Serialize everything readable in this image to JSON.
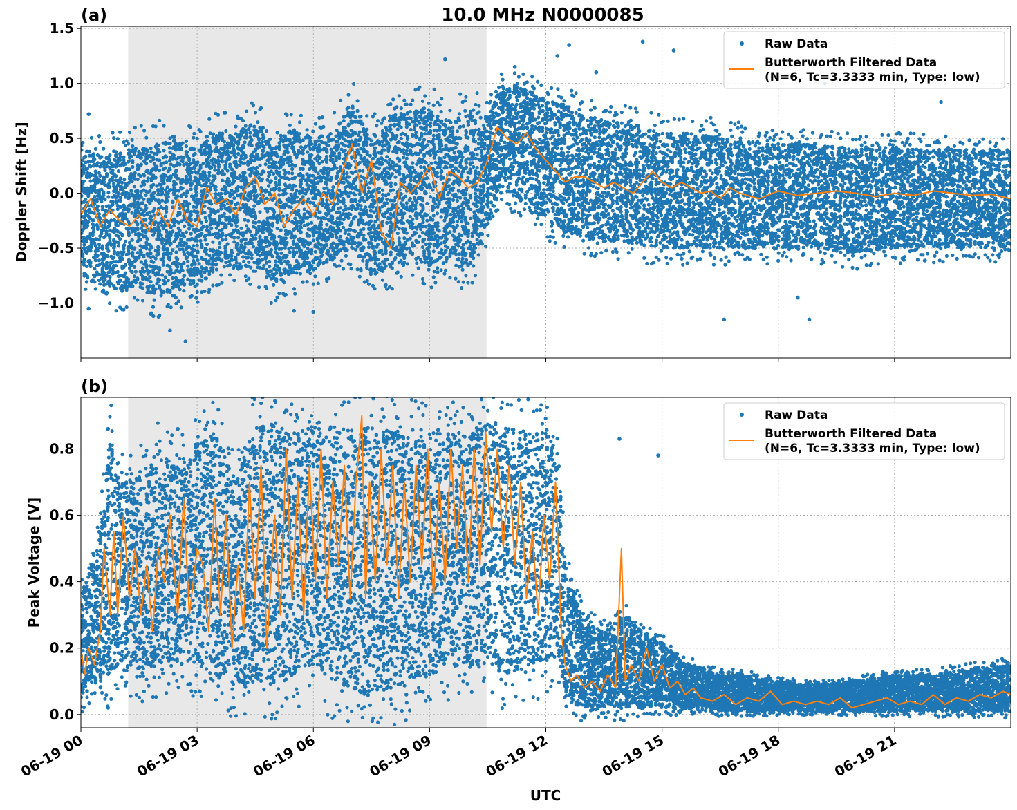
{
  "figure": {
    "title": "10.0 MHz N0000085",
    "xlabel": "UTC"
  },
  "legend": {
    "raw_label": "Raw Data",
    "filtered_label_line1": "Butterworth Filtered Data",
    "filtered_label_line2": "(N=6, Tc=3.3333 min, Type: low)"
  },
  "colors": {
    "raw": "#1f77b4",
    "filtered": "#ff7f0e",
    "shade": "#e8e8e8",
    "grid": "#b0b0b0"
  },
  "chart_data": [
    {
      "type": "scatter",
      "panel_label": "(a)",
      "title": "10.0 MHz N0000085",
      "xlabel": "",
      "ylabel": "Doppler Shift [Hz]",
      "x_unit": "hours UTC on 06-19",
      "xlim": [
        0,
        24
      ],
      "ylim": [
        -1.5,
        1.52
      ],
      "x_ticks": [
        0,
        3,
        6,
        9,
        12,
        15,
        18,
        21
      ],
      "x_tick_labels": [
        "06-19 00",
        "06-19 03",
        "06-19 06",
        "06-19 09",
        "06-19 12",
        "06-19 15",
        "06-19 18",
        "06-19 21"
      ],
      "y_ticks": [
        -1.0,
        -0.5,
        0.0,
        0.5,
        1.0,
        1.5
      ],
      "y_tick_labels": [
        "−1.0",
        "−0.5",
        "0.0",
        "0.5",
        "1.0",
        "1.5"
      ],
      "grid": true,
      "legend_position": "top-right",
      "shaded_region": [
        1.22,
        10.47
      ],
      "series": [
        {
          "name": "Raw Data",
          "style": "points",
          "envelope": {
            "x": [
              0,
              0.5,
              1,
              1.5,
              2,
              2.5,
              3,
              3.5,
              4,
              4.5,
              5,
              5.5,
              6,
              6.5,
              7,
              7.5,
              8,
              8.5,
              9,
              9.5,
              10,
              10.5,
              10.8,
              11,
              11.5,
              12,
              12.5,
              13,
              14,
              15,
              16,
              17,
              18,
              19,
              20,
              21,
              22,
              23,
              24
            ],
            "upper": [
              0.4,
              0.35,
              0.4,
              0.45,
              0.45,
              0.5,
              0.4,
              0.55,
              0.55,
              0.65,
              0.45,
              0.6,
              0.5,
              0.55,
              0.85,
              0.5,
              0.7,
              0.75,
              0.8,
              0.6,
              0.8,
              0.7,
              0.95,
              1.0,
              0.95,
              0.85,
              0.8,
              0.7,
              0.65,
              0.55,
              0.55,
              0.5,
              0.45,
              0.45,
              0.4,
              0.42,
              0.4,
              0.4,
              0.4
            ],
            "lower": [
              -0.75,
              -0.8,
              -0.9,
              -0.85,
              -0.95,
              -0.85,
              -0.85,
              -0.7,
              -0.7,
              -0.65,
              -0.85,
              -0.75,
              -0.7,
              -0.6,
              -0.5,
              -0.75,
              -0.7,
              -0.55,
              -0.65,
              -0.6,
              -0.7,
              -0.3,
              0.0,
              0.0,
              -0.1,
              -0.25,
              -0.35,
              -0.4,
              -0.45,
              -0.5,
              -0.5,
              -0.5,
              -0.5,
              -0.5,
              -0.55,
              -0.5,
              -0.5,
              -0.5,
              -0.5
            ]
          },
          "outliers": [
            [
              0.2,
              -1.05
            ],
            [
              0.2,
              0.72
            ],
            [
              2.3,
              -1.25
            ],
            [
              2.7,
              -1.35
            ],
            [
              5.5,
              -1.07
            ],
            [
              6.0,
              -1.08
            ],
            [
              9.4,
              1.22
            ],
            [
              11.2,
              1.15
            ],
            [
              12.3,
              1.25
            ],
            [
              12.6,
              1.35
            ],
            [
              13.3,
              1.1
            ],
            [
              14.5,
              1.38
            ],
            [
              15.3,
              1.3
            ],
            [
              16.6,
              -1.15
            ],
            [
              18.0,
              1.35
            ],
            [
              18.5,
              -0.95
            ],
            [
              18.8,
              -1.15
            ],
            [
              19.2,
              1.0
            ],
            [
              22.2,
              0.83
            ]
          ]
        },
        {
          "name": "Butterworth Filtered Data\n(N=6, Tc=3.3333 min, Type: low)",
          "style": "line",
          "x": [
            0,
            0.25,
            0.5,
            0.75,
            1,
            1.25,
            1.5,
            1.75,
            2,
            2.25,
            2.5,
            2.75,
            3,
            3.25,
            3.5,
            3.75,
            4,
            4.25,
            4.5,
            4.75,
            5,
            5.25,
            5.5,
            5.75,
            6,
            6.25,
            6.5,
            6.75,
            7,
            7.25,
            7.5,
            7.75,
            8,
            8.25,
            8.5,
            8.75,
            9,
            9.25,
            9.5,
            9.75,
            10,
            10.25,
            10.5,
            10.75,
            11,
            11.25,
            11.5,
            11.75,
            12,
            12.25,
            12.5,
            12.75,
            13,
            13.25,
            13.5,
            13.75,
            14,
            14.25,
            14.5,
            14.75,
            15,
            15.25,
            15.5,
            15.75,
            16,
            16.25,
            16.5,
            16.75,
            17,
            17.5,
            18,
            18.5,
            19,
            19.5,
            20,
            20.5,
            21,
            21.5,
            22,
            22.5,
            23,
            23.5,
            24
          ],
          "y": [
            -0.2,
            -0.05,
            -0.3,
            -0.15,
            -0.25,
            -0.3,
            -0.2,
            -0.35,
            -0.15,
            -0.3,
            -0.05,
            -0.25,
            -0.3,
            0.05,
            -0.1,
            -0.05,
            -0.2,
            0.05,
            0.15,
            -0.1,
            0.0,
            -0.3,
            -0.15,
            -0.05,
            -0.2,
            0.0,
            -0.1,
            0.2,
            0.45,
            0.0,
            0.3,
            -0.35,
            -0.5,
            0.1,
            0.0,
            0.1,
            0.25,
            -0.05,
            0.2,
            0.15,
            0.05,
            0.1,
            0.3,
            0.6,
            0.5,
            0.45,
            0.55,
            0.4,
            0.3,
            0.2,
            0.1,
            0.15,
            0.15,
            0.1,
            0.05,
            0.1,
            0.05,
            0.0,
            0.1,
            0.2,
            0.1,
            0.05,
            0.1,
            0.05,
            0.0,
            0.02,
            -0.05,
            0.05,
            0.0,
            -0.05,
            0.02,
            -0.02,
            0.0,
            0.02,
            0.0,
            -0.03,
            0.0,
            -0.02,
            0.02,
            0.0,
            -0.02,
            -0.01,
            -0.05
          ]
        }
      ]
    },
    {
      "type": "scatter",
      "panel_label": "(b)",
      "title": "",
      "xlabel": "UTC",
      "ylabel": "Peak Voltage [V]",
      "x_unit": "hours UTC on 06-19",
      "xlim": [
        0,
        24
      ],
      "ylim": [
        -0.04,
        0.955
      ],
      "x_ticks": [
        0,
        3,
        6,
        9,
        12,
        15,
        18,
        21
      ],
      "x_tick_labels": [
        "06-19 00",
        "06-19 03",
        "06-19 06",
        "06-19 09",
        "06-19 12",
        "06-19 15",
        "06-19 18",
        "06-19 21"
      ],
      "y_ticks": [
        0.0,
        0.2,
        0.4,
        0.6,
        0.8
      ],
      "y_tick_labels": [
        "0.0",
        "0.2",
        "0.4",
        "0.6",
        "0.8"
      ],
      "grid": true,
      "legend_position": "top-right",
      "shaded_region": [
        1.22,
        10.47
      ],
      "series": [
        {
          "name": "Raw Data",
          "style": "points",
          "envelope": {
            "x": [
              0,
              0.5,
              0.75,
              1,
              1.5,
              2,
              2.5,
              3,
              3.5,
              4,
              4.5,
              5,
              5.5,
              6,
              6.5,
              7,
              7.5,
              8,
              8.5,
              9,
              9.5,
              10,
              10.5,
              11,
              11.5,
              12,
              12.3,
              12.5,
              12.75,
              13,
              13.5,
              14,
              14.5,
              15,
              15.5,
              16,
              16.5,
              17,
              18,
              19,
              20,
              21,
              22,
              23,
              24
            ],
            "upper": [
              0.35,
              0.55,
              0.85,
              0.7,
              0.72,
              0.8,
              0.75,
              0.82,
              0.85,
              0.7,
              0.87,
              0.88,
              0.85,
              0.88,
              0.87,
              0.86,
              0.87,
              0.87,
              0.85,
              0.86,
              0.86,
              0.84,
              0.88,
              0.87,
              0.85,
              0.85,
              0.8,
              0.45,
              0.35,
              0.28,
              0.25,
              0.3,
              0.25,
              0.22,
              0.16,
              0.14,
              0.12,
              0.12,
              0.1,
              0.09,
              0.1,
              0.12,
              0.12,
              0.14,
              0.15
            ],
            "lower": [
              0.05,
              0.1,
              0.12,
              0.15,
              0.12,
              0.15,
              0.15,
              0.15,
              0.12,
              0.08,
              0.1,
              0.1,
              0.12,
              0.15,
              0.1,
              0.08,
              0.05,
              0.08,
              0.1,
              0.12,
              0.15,
              0.15,
              0.15,
              0.12,
              0.15,
              0.15,
              0.2,
              0.05,
              0.03,
              0.02,
              0.02,
              0.02,
              0.02,
              0.02,
              0.02,
              0.02,
              0.01,
              0.01,
              0.01,
              0.01,
              0.01,
              0.01,
              0.01,
              0.01,
              0.01
            ]
          },
          "outliers": [
            [
              0.7,
              0.86
            ],
            [
              2.5,
              0.86
            ],
            [
              5.3,
              0.05
            ],
            [
              7.5,
              0.9
            ],
            [
              8.4,
              0.06
            ],
            [
              13.9,
              0.83
            ],
            [
              14.9,
              0.78
            ],
            [
              14.5,
              0.12
            ],
            [
              19.1,
              0.06
            ]
          ]
        },
        {
          "name": "Butterworth Filtered Data\n(N=6, Tc=3.3333 min, Type: low)",
          "style": "line",
          "x": [
            0,
            0.1,
            0.2,
            0.35,
            0.5,
            0.6,
            0.75,
            0.85,
            0.95,
            1.1,
            1.25,
            1.4,
            1.55,
            1.7,
            1.85,
            2.0,
            2.15,
            2.3,
            2.5,
            2.65,
            2.8,
            3.0,
            3.15,
            3.3,
            3.45,
            3.6,
            3.75,
            3.9,
            4.05,
            4.2,
            4.35,
            4.5,
            4.65,
            4.8,
            5.0,
            5.15,
            5.3,
            5.45,
            5.6,
            5.75,
            5.9,
            6.05,
            6.2,
            6.35,
            6.5,
            6.65,
            6.8,
            6.95,
            7.1,
            7.25,
            7.35,
            7.45,
            7.6,
            7.75,
            7.9,
            8.05,
            8.2,
            8.35,
            8.5,
            8.65,
            8.8,
            8.95,
            9.1,
            9.25,
            9.4,
            9.55,
            9.7,
            9.85,
            10.0,
            10.15,
            10.3,
            10.45,
            10.6,
            10.75,
            10.9,
            11.05,
            11.2,
            11.35,
            11.5,
            11.65,
            11.8,
            11.95,
            12.1,
            12.25,
            12.4,
            12.5,
            12.65,
            12.8,
            13.0,
            13.2,
            13.4,
            13.6,
            13.8,
            13.95,
            14.05,
            14.2,
            14.4,
            14.6,
            14.8,
            15.0,
            15.2,
            15.4,
            15.6,
            15.8,
            16.0,
            16.3,
            16.6,
            16.9,
            17.2,
            17.5,
            17.8,
            18.1,
            18.4,
            18.7,
            19.0,
            19.3,
            19.6,
            19.9,
            20.2,
            20.5,
            20.8,
            21.1,
            21.4,
            21.7,
            22.0,
            22.3,
            22.6,
            22.9,
            23.2,
            23.5,
            23.8,
            24.0
          ],
          "y": [
            0.2,
            0.12,
            0.2,
            0.15,
            0.25,
            0.5,
            0.3,
            0.55,
            0.3,
            0.6,
            0.35,
            0.5,
            0.3,
            0.45,
            0.25,
            0.5,
            0.4,
            0.6,
            0.3,
            0.65,
            0.3,
            0.5,
            0.45,
            0.25,
            0.65,
            0.3,
            0.6,
            0.2,
            0.45,
            0.25,
            0.7,
            0.35,
            0.75,
            0.2,
            0.6,
            0.3,
            0.8,
            0.35,
            0.7,
            0.3,
            0.75,
            0.4,
            0.8,
            0.35,
            0.7,
            0.45,
            0.75,
            0.35,
            0.7,
            0.9,
            0.35,
            0.7,
            0.4,
            0.8,
            0.45,
            0.75,
            0.35,
            0.7,
            0.4,
            0.75,
            0.45,
            0.8,
            0.35,
            0.7,
            0.4,
            0.8,
            0.5,
            0.75,
            0.4,
            0.8,
            0.45,
            0.85,
            0.55,
            0.8,
            0.5,
            0.75,
            0.45,
            0.7,
            0.35,
            0.55,
            0.3,
            0.6,
            0.4,
            0.7,
            0.25,
            0.15,
            0.1,
            0.12,
            0.08,
            0.1,
            0.07,
            0.12,
            0.08,
            0.5,
            0.1,
            0.15,
            0.1,
            0.2,
            0.1,
            0.15,
            0.08,
            0.1,
            0.06,
            0.08,
            0.05,
            0.04,
            0.06,
            0.03,
            0.05,
            0.04,
            0.07,
            0.03,
            0.04,
            0.03,
            0.04,
            0.03,
            0.05,
            0.02,
            0.03,
            0.04,
            0.05,
            0.03,
            0.04,
            0.03,
            0.06,
            0.03,
            0.05,
            0.04,
            0.06,
            0.05,
            0.07,
            0.06
          ]
        }
      ]
    }
  ]
}
